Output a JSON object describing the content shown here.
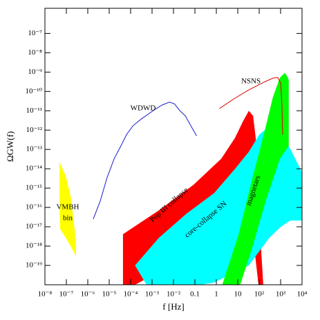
{
  "chart_data": {
    "type": "line",
    "x_label": "f [Hz]",
    "y_label": "ΩGW(f)",
    "xscale": "log",
    "yscale": "log",
    "xlim": [
      1e-08,
      10000
    ],
    "ylim": [
      1e-20,
      2e-06
    ],
    "xticks": [
      {
        "value": 1e-08,
        "label": "10⁻⁸"
      },
      {
        "value": 1e-07,
        "label": "10⁻⁷"
      },
      {
        "value": 1e-06,
        "label": "10⁻⁶"
      },
      {
        "value": 1e-05,
        "label": "10⁻⁵"
      },
      {
        "value": 0.0001,
        "label": "10⁻⁴"
      },
      {
        "value": 0.001,
        "label": "10⁻³"
      },
      {
        "value": 0.01,
        "label": "10⁻²"
      },
      0.1,
      1,
      10,
      {
        "value": 100,
        "label": "10²"
      },
      {
        "value": 1000,
        "label": "10³"
      },
      {
        "value": 10000,
        "label": "10⁴"
      }
    ],
    "yticks": [
      {
        "value": 1e-19,
        "label": "10⁻¹⁹"
      },
      {
        "value": 1e-18,
        "label": "10⁻¹⁸"
      },
      {
        "value": 1e-17,
        "label": "10⁻¹⁷"
      },
      {
        "value": 1e-16,
        "label": "10⁻¹⁶"
      },
      {
        "value": 1e-15,
        "label": "10⁻¹⁵"
      },
      {
        "value": 1e-14,
        "label": "10⁻¹⁴"
      },
      {
        "value": 1e-13,
        "label": "10⁻¹³"
      },
      {
        "value": 1e-12,
        "label": "10⁻¹²"
      },
      {
        "value": 1e-11,
        "label": "10⁻¹¹"
      },
      {
        "value": 1e-10,
        "label": "10⁻¹⁰"
      },
      {
        "value": 1e-09,
        "label": "10⁻⁹"
      },
      {
        "value": 1e-08,
        "label": "10⁻⁸"
      },
      {
        "value": 1e-07,
        "label": "10⁻⁷"
      }
    ],
    "regions": [
      {
        "label": [
          "VMBH",
          "bin"
        ],
        "color": "#ffff00",
        "x": [
          4.8e-08,
          9.3e-08,
          1.6e-07,
          2.2e-07,
          2.8e-07,
          2.8e-07,
          1.8e-07,
          9.3e-08,
          5.1e-08,
          4.8e-08
        ],
        "values": [
          2.2e-14,
          4.3e-15,
          3.7e-16,
          2.1e-17,
          1.8e-18,
          2.9e-19,
          7.9e-19,
          2.7e-18,
          7.8e-18,
          1.1e-16
        ]
      },
      {
        "label": [
          "Pop III collapse"
        ],
        "color": "#ff0000",
        "x": [
          4.4e-05,
          0.0021,
          0.087,
          1.7,
          7.4,
          18,
          33,
          52,
          69,
          80,
          107,
          155,
          93,
          59,
          15,
          1.7,
          0.087,
          0.0021,
          0.00016,
          4.4e-05
        ],
        "values": [
          4.1e-18,
          7.1e-17,
          1.5e-15,
          3.3e-14,
          3.9e-13,
          3e-12,
          1e-11,
          5.4e-12,
          3.9e-13,
          2.9e-15,
          9.1e-18,
          1e-20,
          1e-20,
          7.9e-19,
          9.1e-18,
          9.1e-18,
          7.9e-19,
          4.5e-20,
          1e-20,
          1e-20
        ]
      },
      {
        "label": [
          "core-collapse SN"
        ],
        "color": "#00ffff",
        "x": [
          0.00016,
          0.0021,
          0.041,
          0.79,
          7.4,
          33,
          100,
          300,
          930,
          2800,
          10000,
          10000,
          2800,
          930,
          300,
          100,
          33,
          7.4,
          0.79,
          0.18,
          0.00055
        ],
        "values": [
          1e-19,
          2.7e-18,
          4.8e-17,
          5.5e-16,
          9.8e-15,
          7.6e-14,
          5.8e-13,
          1.6e-12,
          8.9e-13,
          1.1e-13,
          6.5e-15,
          2.1e-17,
          2.1e-17,
          9.1e-18,
          2.7e-18,
          5.3e-19,
          1e-19,
          4.5e-20,
          1.3e-20,
          1e-20,
          1e-20
        ]
      },
      {
        "label": [
          "magnetars"
        ],
        "color": "#00ff00",
        "x": [
          1.9,
          11,
          47,
          150,
          440,
          930,
          1600,
          2400,
          2400,
          930,
          210,
          47,
          13
        ],
        "values": [
          1e-20,
          4.1e-18,
          2.9e-15,
          3.9e-13,
          5.2e-11,
          5.2e-10,
          9.3e-10,
          4.1e-10,
          1.5e-13,
          3.3e-14,
          2.5e-16,
          7.9e-19,
          1e-20
        ]
      }
    ],
    "series": [
      {
        "name": "WDWD",
        "color": "#1a1acc",
        "x": [
          1.8e-06,
          3.8e-06,
          7.9e-06,
          1.7e-05,
          3.5e-05,
          6.4e-05,
          0.00013,
          0.00033,
          0.00069,
          0.0014,
          0.003,
          0.0064,
          0.011,
          0.02,
          0.036,
          0.064,
          0.12
        ],
        "values": [
          2.5e-17,
          2.1e-16,
          3.4e-15,
          3.3e-14,
          1.5e-13,
          5.8e-13,
          1.7e-12,
          3.9e-12,
          6.9e-12,
          1.2e-11,
          2e-11,
          2.8e-11,
          2.3e-11,
          1e-11,
          5.4e-12,
          1.7e-12,
          5e-13
        ]
      },
      {
        "name": "NSNS",
        "color": "#dd0000",
        "x": [
          1.4,
          7.4,
          33,
          145,
          440,
          740,
          1000,
          1150,
          1250
        ],
        "values": [
          1.3e-11,
          4.5e-11,
          1.2e-10,
          2.8e-10,
          4.9e-10,
          5.2e-10,
          2.8e-10,
          2.3e-11,
          5.8e-13
        ]
      }
    ]
  }
}
